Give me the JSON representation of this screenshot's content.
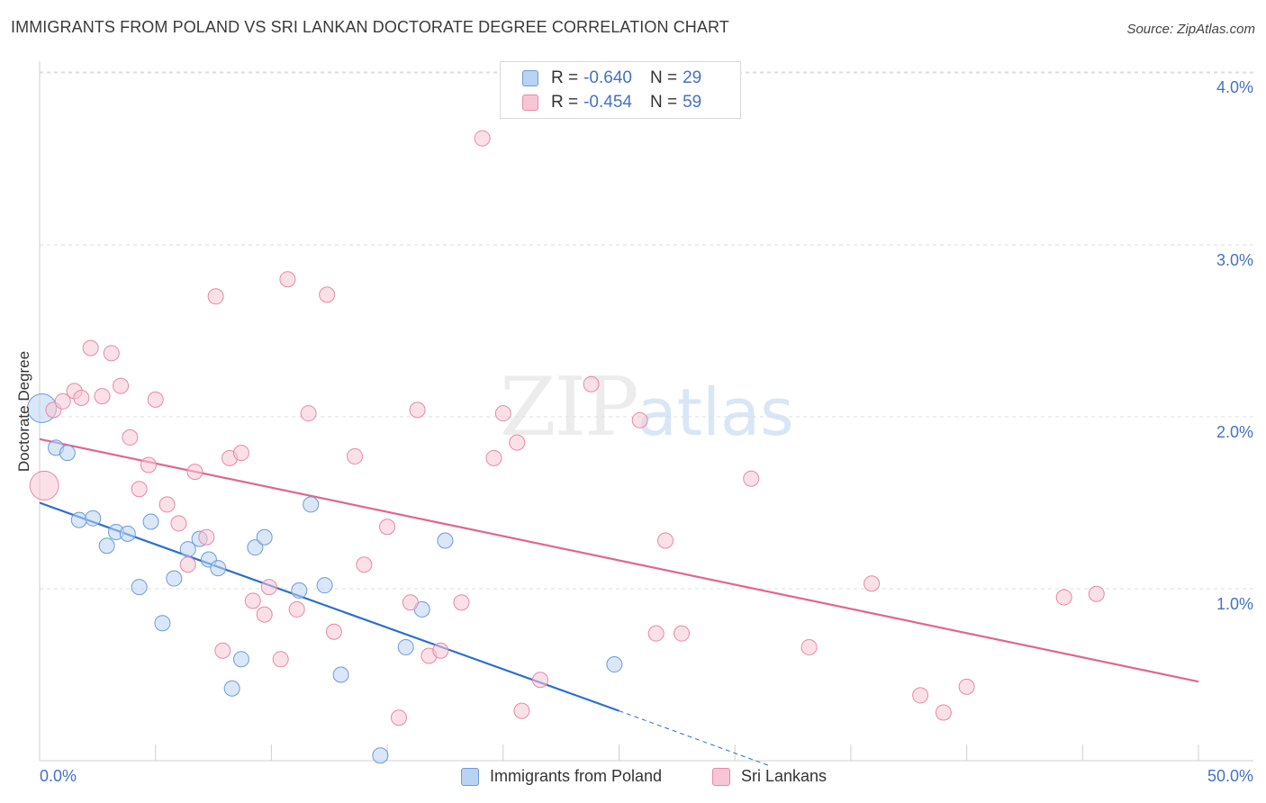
{
  "header": {
    "title": "IMMIGRANTS FROM POLAND VS SRI LANKAN DOCTORATE DEGREE CORRELATION CHART",
    "source": "Source: ZipAtlas.com"
  },
  "watermark": {
    "zip": "ZIP",
    "atlas": "atlas"
  },
  "legend": {
    "r_label": "R =",
    "n_label": "N =",
    "series": [
      {
        "name": "Immigrants from Poland",
        "r": "-0.640",
        "n": "29"
      },
      {
        "name": "Sri Lankans",
        "r": "-0.454",
        "n": "59"
      }
    ]
  },
  "colors": {
    "blue_fill": "#b9d3f2",
    "blue_stroke": "#6d9bd6",
    "blue_line": "#2a6fcf",
    "pink_fill": "#f7c6d5",
    "pink_stroke": "#e68aa6",
    "pink_line": "#e0668f",
    "tick_text": "#4472c4",
    "grid": "#dddddd"
  },
  "chart_data": {
    "type": "scatter",
    "title": "IMMIGRANTS FROM POLAND VS SRI LANKAN DOCTORATE DEGREE CORRELATION CHART",
    "xlabel": "",
    "ylabel": "Doctorate Degree",
    "xlim": [
      0,
      50
    ],
    "ylim": [
      0,
      4.2
    ],
    "x_tick_labels": [
      "0.0%",
      "50.0%"
    ],
    "y_ticks": [
      1.0,
      2.0,
      3.0,
      4.0
    ],
    "y_tick_labels": [
      "1.0%",
      "2.0%",
      "3.0%",
      "4.0%"
    ],
    "grid": true,
    "series": [
      {
        "name": "Immigrants from Poland",
        "color": "blue",
        "trend": {
          "x": [
            0,
            25
          ],
          "y": [
            1.5,
            0.29
          ]
        },
        "trend_dashed": {
          "x": [
            25,
            31.5
          ],
          "y": [
            0.29,
            -0.03
          ]
        },
        "points": [
          {
            "x": 0.1,
            "y": 2.05,
            "big": true
          },
          {
            "x": 0.7,
            "y": 1.82
          },
          {
            "x": 1.2,
            "y": 1.79
          },
          {
            "x": 1.7,
            "y": 1.4
          },
          {
            "x": 2.3,
            "y": 1.41
          },
          {
            "x": 2.9,
            "y": 1.25
          },
          {
            "x": 3.3,
            "y": 1.33
          },
          {
            "x": 3.8,
            "y": 1.32
          },
          {
            "x": 4.3,
            "y": 1.01
          },
          {
            "x": 4.8,
            "y": 1.39
          },
          {
            "x": 5.3,
            "y": 0.8
          },
          {
            "x": 5.8,
            "y": 1.06
          },
          {
            "x": 6.4,
            "y": 1.23
          },
          {
            "x": 6.9,
            "y": 1.29
          },
          {
            "x": 7.3,
            "y": 1.17
          },
          {
            "x": 7.7,
            "y": 1.12
          },
          {
            "x": 8.3,
            "y": 0.42
          },
          {
            "x": 8.7,
            "y": 0.59
          },
          {
            "x": 9.3,
            "y": 1.24
          },
          {
            "x": 9.7,
            "y": 1.3
          },
          {
            "x": 11.2,
            "y": 0.99
          },
          {
            "x": 11.7,
            "y": 1.49
          },
          {
            "x": 12.3,
            "y": 1.02
          },
          {
            "x": 13.0,
            "y": 0.5
          },
          {
            "x": 14.7,
            "y": 0.03
          },
          {
            "x": 15.8,
            "y": 0.66
          },
          {
            "x": 16.5,
            "y": 0.88
          },
          {
            "x": 17.5,
            "y": 1.28
          },
          {
            "x": 24.8,
            "y": 0.56
          }
        ]
      },
      {
        "name": "Sri Lankans",
        "color": "pink",
        "trend": {
          "x": [
            0,
            50
          ],
          "y": [
            1.87,
            0.46
          ]
        },
        "points": [
          {
            "x": 0.2,
            "y": 1.6,
            "big": true
          },
          {
            "x": 0.6,
            "y": 2.04
          },
          {
            "x": 1.0,
            "y": 2.09
          },
          {
            "x": 1.5,
            "y": 2.15
          },
          {
            "x": 1.8,
            "y": 2.11
          },
          {
            "x": 2.2,
            "y": 2.4
          },
          {
            "x": 2.7,
            "y": 2.12
          },
          {
            "x": 3.1,
            "y": 2.37
          },
          {
            "x": 3.5,
            "y": 2.18
          },
          {
            "x": 3.9,
            "y": 1.88
          },
          {
            "x": 4.3,
            "y": 1.58
          },
          {
            "x": 4.7,
            "y": 1.72
          },
          {
            "x": 5.0,
            "y": 2.1
          },
          {
            "x": 5.5,
            "y": 1.49
          },
          {
            "x": 6.0,
            "y": 1.38
          },
          {
            "x": 6.4,
            "y": 1.14
          },
          {
            "x": 6.7,
            "y": 1.68
          },
          {
            "x": 7.2,
            "y": 1.3
          },
          {
            "x": 7.6,
            "y": 2.7
          },
          {
            "x": 7.9,
            "y": 0.64
          },
          {
            "x": 8.2,
            "y": 1.76
          },
          {
            "x": 8.7,
            "y": 1.79
          },
          {
            "x": 9.2,
            "y": 0.93
          },
          {
            "x": 9.7,
            "y": 0.85
          },
          {
            "x": 9.9,
            "y": 1.01
          },
          {
            "x": 10.4,
            "y": 0.59
          },
          {
            "x": 10.7,
            "y": 2.8
          },
          {
            "x": 11.1,
            "y": 0.88
          },
          {
            "x": 11.6,
            "y": 2.02
          },
          {
            "x": 12.4,
            "y": 2.71
          },
          {
            "x": 12.7,
            "y": 0.75
          },
          {
            "x": 13.6,
            "y": 1.77
          },
          {
            "x": 14.0,
            "y": 1.14
          },
          {
            "x": 15.0,
            "y": 1.36
          },
          {
            "x": 15.5,
            "y": 0.25
          },
          {
            "x": 16.0,
            "y": 0.92
          },
          {
            "x": 16.3,
            "y": 2.04
          },
          {
            "x": 16.8,
            "y": 0.61
          },
          {
            "x": 17.3,
            "y": 0.64
          },
          {
            "x": 18.2,
            "y": 0.92
          },
          {
            "x": 19.1,
            "y": 3.62
          },
          {
            "x": 19.6,
            "y": 1.76
          },
          {
            "x": 20.0,
            "y": 2.02
          },
          {
            "x": 20.6,
            "y": 1.85
          },
          {
            "x": 20.8,
            "y": 0.29
          },
          {
            "x": 21.6,
            "y": 0.47
          },
          {
            "x": 23.8,
            "y": 2.19
          },
          {
            "x": 25.9,
            "y": 1.98
          },
          {
            "x": 26.6,
            "y": 0.74
          },
          {
            "x": 27.0,
            "y": 1.28
          },
          {
            "x": 27.7,
            "y": 0.74
          },
          {
            "x": 30.7,
            "y": 1.64
          },
          {
            "x": 33.2,
            "y": 0.66
          },
          {
            "x": 35.9,
            "y": 1.03
          },
          {
            "x": 38.0,
            "y": 0.38
          },
          {
            "x": 39.0,
            "y": 0.28
          },
          {
            "x": 40.0,
            "y": 0.43
          },
          {
            "x": 44.2,
            "y": 0.95
          },
          {
            "x": 45.6,
            "y": 0.97
          }
        ]
      }
    ]
  }
}
